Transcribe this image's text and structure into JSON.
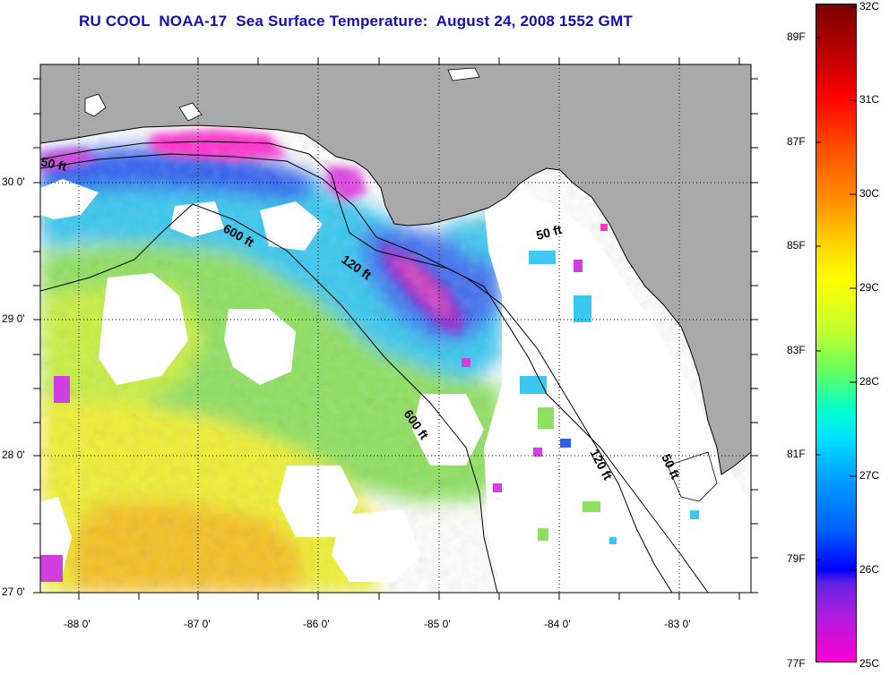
{
  "title": "RU COOL  NOAA-17  Sea Surface Temperature:  August 24, 2008 1552 GMT",
  "map": {
    "lat_labels": [
      "30 0'",
      "29 0'",
      "28 0'",
      "27 0'"
    ],
    "lon_labels": [
      "-88 0'",
      "-87 0'",
      "-86 0'",
      "-85 0'",
      "-84 0'",
      "-83 0'"
    ],
    "contour_labels": [
      "50 ft",
      "600 ft",
      "120 ft",
      "50 ft",
      "600 ft",
      "120 ft",
      "50 ft"
    ],
    "colors": {
      "land": "#a9a9a9",
      "cloud": "#ffffff"
    }
  },
  "colorbar": {
    "fahrenheit_labels": [
      "89F",
      "87F",
      "85F",
      "83F",
      "81F",
      "79F",
      "77F"
    ],
    "celsius_labels": [
      "32C",
      "31C",
      "30C",
      "29C",
      "28C",
      "27C",
      "26C",
      "25C"
    ],
    "range_c": [
      25,
      32
    ]
  }
}
